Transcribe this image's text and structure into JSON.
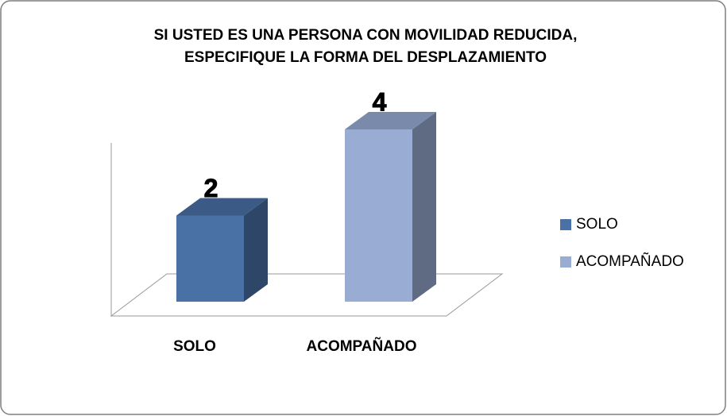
{
  "chart_data": {
    "type": "bar3d",
    "title": [
      "SI USTED ES UNA PERSONA CON MOVILIDAD REDUCIDA,",
      "ESPECIFIQUE LA FORMA DEL DESPLAZAMIENTO"
    ],
    "categories": [
      "SOLO",
      "ACOMPAÑADO"
    ],
    "values": [
      2,
      4
    ],
    "colors": [
      "#4a71a6",
      "#98acd4"
    ],
    "legend": "right"
  }
}
